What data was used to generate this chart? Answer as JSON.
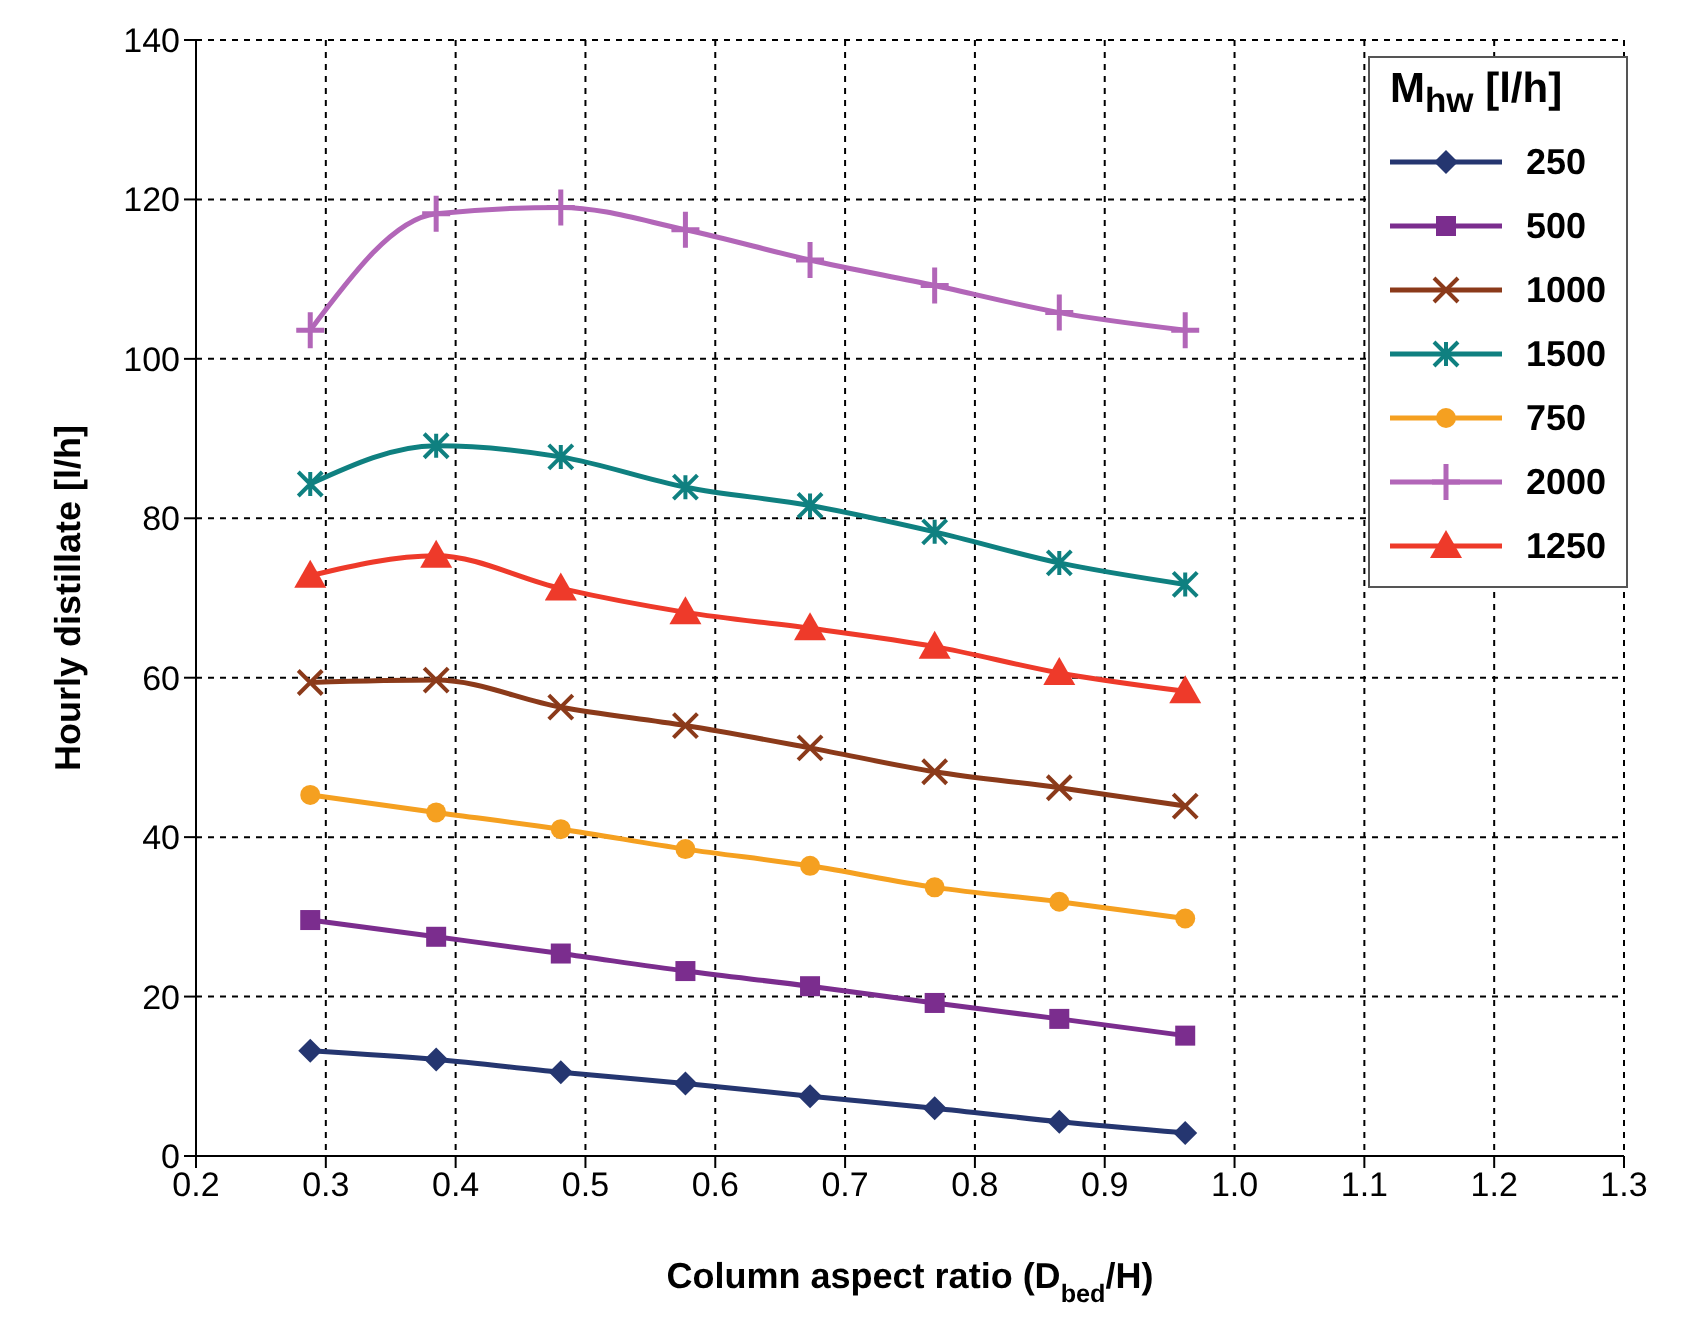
{
  "chart_data": {
    "type": "line",
    "xlabel": "Column aspect ratio (D$_{bed}$/H)",
    "ylabel": "Hourly distillate [l/h]",
    "legend_title": "M$_{hw}$ [l/h]",
    "x": [
      0.288,
      0.385,
      0.481,
      0.577,
      0.673,
      0.769,
      0.865,
      0.962
    ],
    "xlim": [
      0.2,
      1.3
    ],
    "xticks": [
      {
        "value": 0.2,
        "label": "0.2"
      },
      {
        "value": 0.3,
        "label": "0.3"
      },
      {
        "value": 0.4,
        "label": "0.4"
      },
      {
        "value": 0.5,
        "label": "0.5"
      },
      {
        "value": 0.6,
        "label": "0.6"
      },
      {
        "value": 0.7,
        "label": "0.7"
      },
      {
        "value": 0.8,
        "label": "0.8"
      },
      {
        "value": 0.9,
        "label": "0.9"
      },
      {
        "value": 1.0,
        "label": "1.0"
      },
      {
        "value": 1.1,
        "label": "1.1"
      },
      {
        "value": 1.2,
        "label": "1.2"
      },
      {
        "value": 1.3,
        "label": "1.3"
      }
    ],
    "ylim": [
      0,
      140
    ],
    "yticks": [
      0,
      20,
      40,
      60,
      80,
      100,
      120,
      140
    ],
    "grid": true,
    "legend": "top right",
    "series": [
      {
        "name": "250",
        "color": "#253670",
        "marker": "diamond",
        "values": [
          13.2,
          12.1,
          10.5,
          9.1,
          7.5,
          6.0,
          4.3,
          2.9
        ]
      },
      {
        "name": "500",
        "color": "#7b2d8e",
        "marker": "square",
        "values": [
          29.6,
          27.5,
          25.4,
          23.2,
          21.3,
          19.2,
          17.2,
          15.1
        ]
      },
      {
        "name": "1000",
        "color": "#8b3a1a",
        "marker": "x",
        "values": [
          59.4,
          59.7,
          56.3,
          54.0,
          51.2,
          48.2,
          46.2,
          43.9
        ]
      },
      {
        "name": "1500",
        "color": "#0f8080",
        "marker": "cross",
        "values": [
          84.3,
          89.1,
          87.7,
          83.9,
          81.6,
          78.3,
          74.4,
          71.7
        ]
      },
      {
        "name": "750",
        "color": "#f5a020",
        "marker": "circle",
        "values": [
          45.3,
          43.1,
          41.0,
          38.5,
          36.4,
          33.7,
          31.9,
          29.8
        ]
      },
      {
        "name": "2000",
        "color": "#b266b8",
        "marker": "plus",
        "values": [
          103.6,
          118.2,
          119.0,
          116.2,
          112.4,
          109.2,
          105.8,
          103.6
        ]
      },
      {
        "name": "1250",
        "color": "#ee3a2a",
        "marker": "triangle",
        "values": [
          72.8,
          75.3,
          71.2,
          68.2,
          66.2,
          63.9,
          60.6,
          58.3
        ]
      }
    ]
  }
}
